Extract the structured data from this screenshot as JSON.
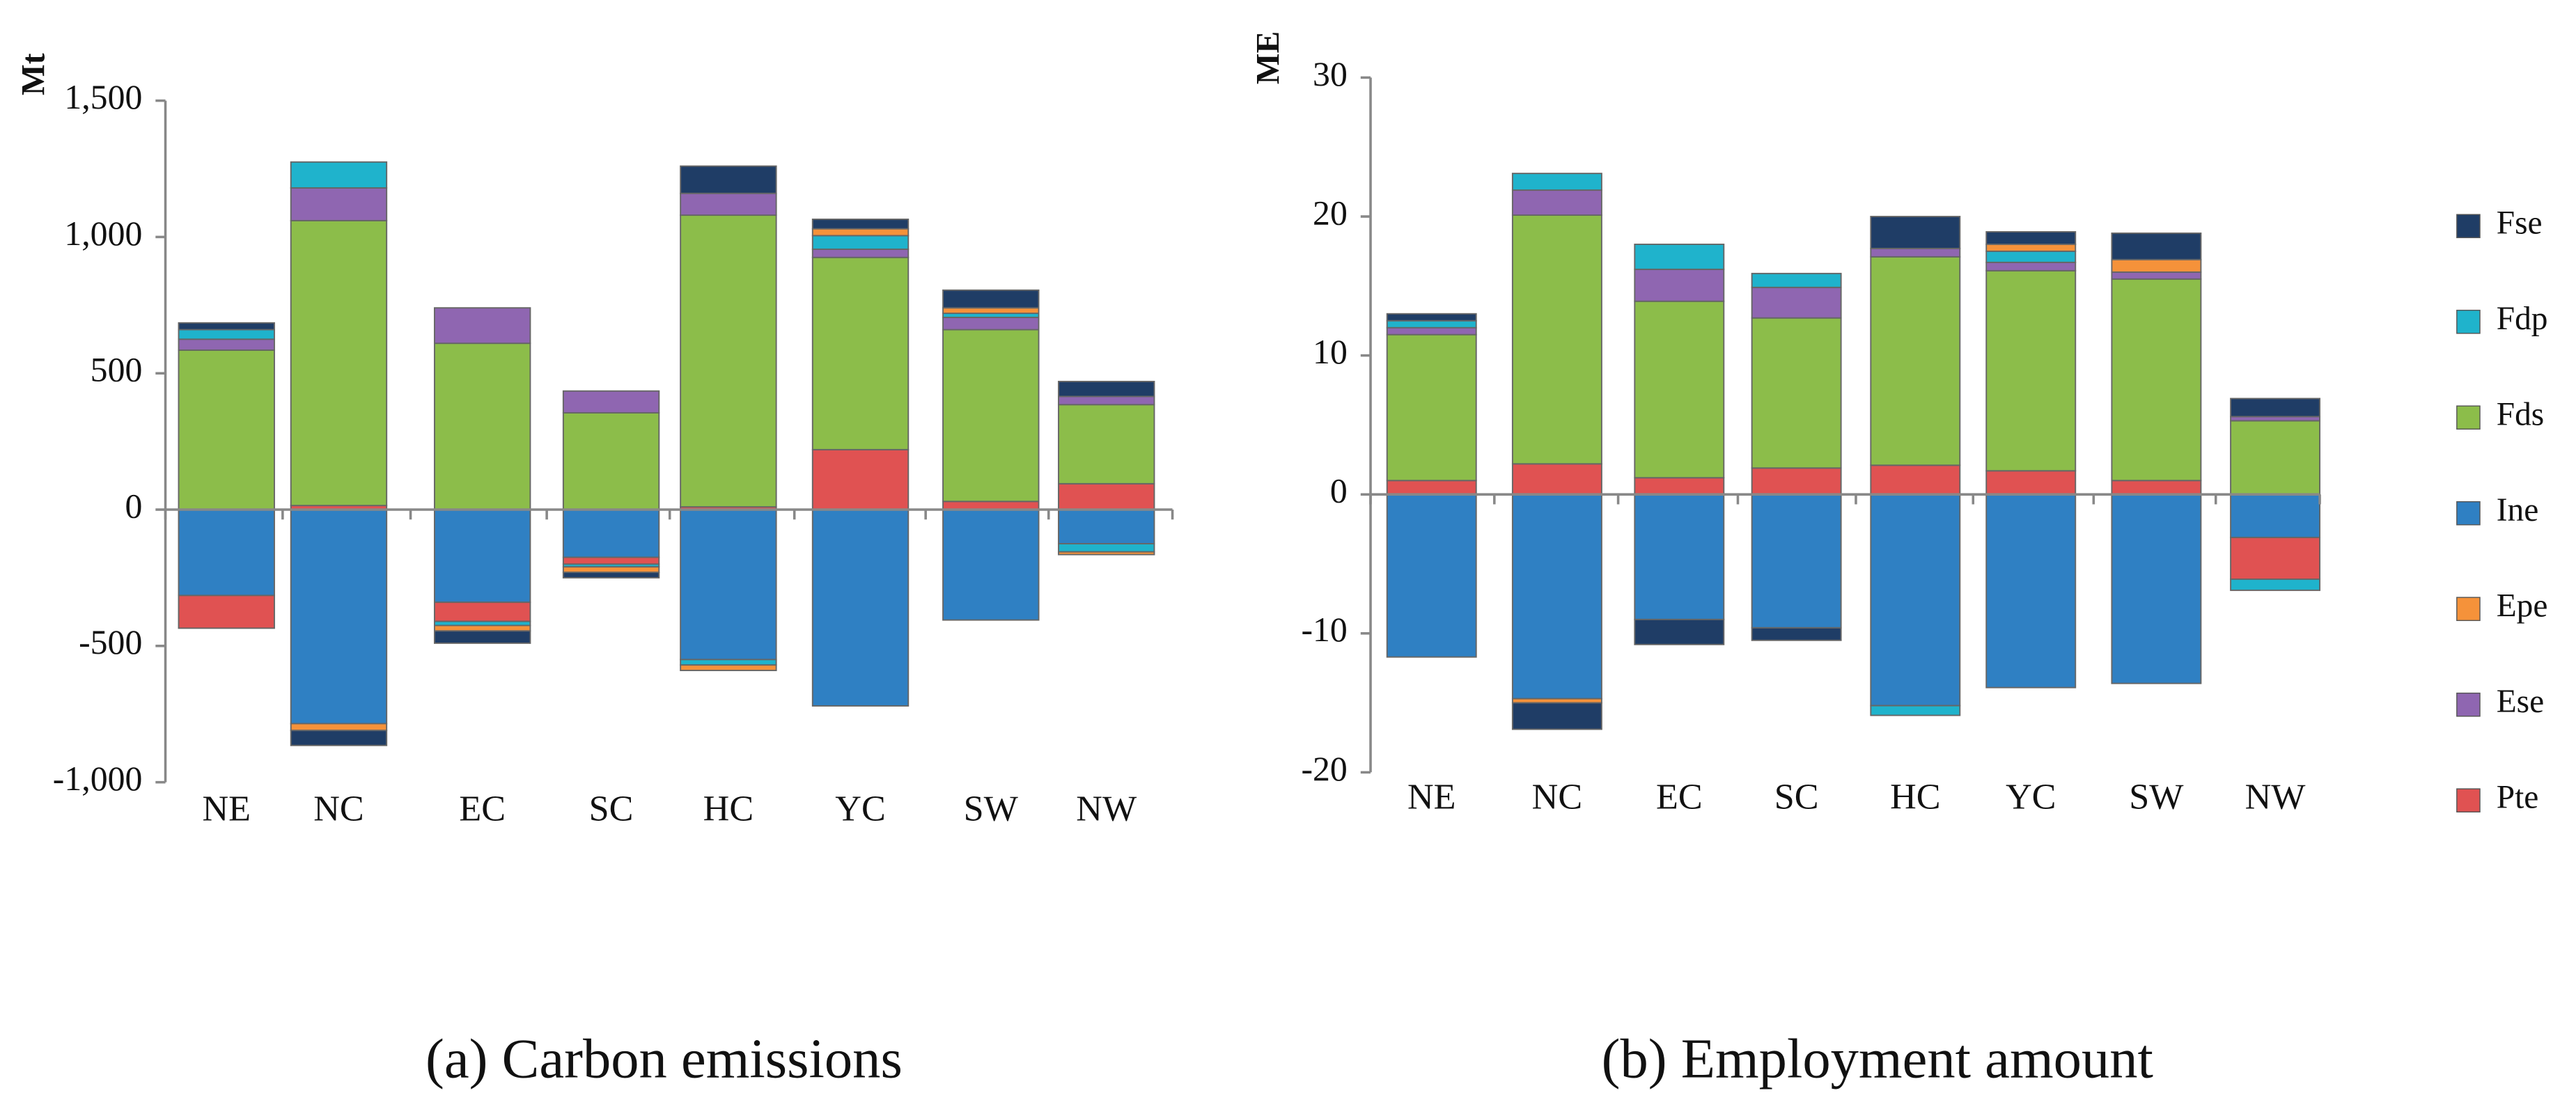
{
  "chart_data": [
    {
      "type": "bar",
      "stacked": true,
      "title": "(a) Carbon emissions",
      "y_label": "Mt",
      "categories": [
        "NE",
        "NC",
        "EC",
        "SC",
        "HC",
        "YC",
        "SW",
        "NW"
      ],
      "ylim": [
        -1000,
        1500
      ],
      "yticks": [
        {
          "value": -1000,
          "label": "-1,000"
        },
        -500,
        0,
        500,
        {
          "value": 1000,
          "label": "1,000"
        },
        {
          "value": 1500,
          "label": "1,500"
        }
      ],
      "series": [
        {
          "name": "Fse",
          "color": "#1f3d66",
          "values": [
            25,
            -55,
            -45,
            -20,
            100,
            35,
            65,
            55
          ]
        },
        {
          "name": "Fdp",
          "color": "#1fb3cc",
          "values": [
            35,
            95,
            -15,
            -10,
            -20,
            50,
            15,
            -30
          ]
        },
        {
          "name": "Fds",
          "color": "#8cbd4a",
          "values": [
            585,
            1045,
            610,
            355,
            1070,
            705,
            630,
            290
          ]
        },
        {
          "name": "Ine",
          "color": "#2f80c3",
          "values": [
            -315,
            -785,
            -340,
            -175,
            -550,
            -720,
            -405,
            -125
          ]
        },
        {
          "name": "Epe",
          "color": "#f5923a",
          "values": [
            0,
            -25,
            -20,
            -20,
            -20,
            25,
            20,
            -10
          ]
        },
        {
          "name": "Ese",
          "color": "#8f66b1",
          "values": [
            40,
            120,
            130,
            80,
            80,
            30,
            45,
            30
          ]
        },
        {
          "name": "Pte",
          "color": "#e05252",
          "values": [
            -120,
            15,
            -70,
            -25,
            10,
            220,
            30,
            95
          ]
        }
      ]
    },
    {
      "type": "bar",
      "stacked": true,
      "title": "(b) Employment amount",
      "y_label": "ME",
      "legend": "right",
      "categories": [
        "NE",
        "NC",
        "EC",
        "SC",
        "HC",
        "YC",
        "SW",
        "NW"
      ],
      "ylim": [
        -20,
        30
      ],
      "yticks": [
        -20,
        -10,
        0,
        10,
        20,
        30
      ],
      "series": [
        {
          "name": "Fse",
          "color": "#1f3d66",
          "values": [
            0.5,
            -1.9,
            -1.8,
            -0.9,
            2.3,
            0.9,
            1.9,
            1.3
          ]
        },
        {
          "name": "Fdp",
          "color": "#1fb3cc",
          "values": [
            0.5,
            1.2,
            1.8,
            1.0,
            -0.7,
            0.8,
            0,
            -0.8
          ]
        },
        {
          "name": "Fds",
          "color": "#8cbd4a",
          "values": [
            10.5,
            17.9,
            12.7,
            10.8,
            15,
            14.4,
            14.5,
            5.3
          ]
        },
        {
          "name": "Ine",
          "color": "#2f80c3",
          "values": [
            -11.7,
            -14.7,
            -9.0,
            -9.6,
            -15.2,
            -13.9,
            -13.6,
            -3.1
          ]
        },
        {
          "name": "Epe",
          "color": "#f5923a",
          "values": [
            0,
            -0.3,
            0,
            0,
            0,
            0.5,
            0.9,
            0
          ]
        },
        {
          "name": "Ese",
          "color": "#8f66b1",
          "values": [
            0.5,
            1.8,
            2.3,
            2.2,
            0.6,
            0.6,
            0.5,
            0.3
          ]
        },
        {
          "name": "Pte",
          "color": "#e05252",
          "values": [
            1,
            2.2,
            1.2,
            1.9,
            2.1,
            1.7,
            1.0,
            -3.0
          ]
        }
      ]
    }
  ]
}
